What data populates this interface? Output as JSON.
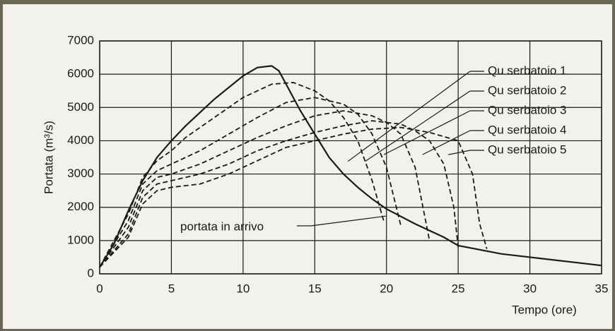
{
  "chart_data": {
    "type": "line",
    "xlabel": "Tempo (ore)",
    "ylabel": "Portata (m³/s)",
    "xlim": [
      0,
      35
    ],
    "xticks": [
      0,
      5,
      10,
      15,
      20,
      25,
      30,
      35
    ],
    "ylim": [
      0,
      7000
    ],
    "yticks": [
      0,
      1000,
      2000,
      3000,
      4000,
      5000,
      6000,
      7000
    ],
    "grid": true,
    "annotation": "portata in arrivo",
    "series": [
      {
        "name": "portata in arrivo",
        "color": "#1a1a1a",
        "style": "solid",
        "x": [
          0,
          1,
          2,
          3,
          4,
          5,
          6,
          7,
          8,
          9,
          10,
          11,
          12,
          12.5,
          13,
          14,
          15,
          16,
          17,
          18,
          19,
          20,
          22,
          24,
          25,
          28,
          30,
          35
        ],
        "values": [
          200,
          900,
          1900,
          2800,
          3500,
          4000,
          4450,
          4850,
          5250,
          5600,
          5950,
          6200,
          6250,
          6100,
          5700,
          4900,
          4200,
          3500,
          3000,
          2600,
          2250,
          1950,
          1500,
          1100,
          850,
          600,
          500,
          250
        ]
      },
      {
        "name": "Qu serbatoio 1",
        "color": "#1a1a1a",
        "style": "dashed",
        "x": [
          0,
          2,
          3,
          4,
          5,
          6,
          8,
          10,
          12,
          13.5,
          15,
          16,
          17,
          18,
          19,
          19.8
        ],
        "values": [
          200,
          1800,
          2900,
          3400,
          3700,
          4100,
          4700,
          5300,
          5700,
          5750,
          5500,
          5200,
          4700,
          4000,
          2800,
          1600
        ]
      },
      {
        "name": "Qu serbatoio 2",
        "color": "#1a1a1a",
        "style": "dashed",
        "x": [
          0,
          2,
          3,
          4,
          5,
          7,
          9,
          11,
          13,
          15,
          17,
          18,
          19,
          20,
          21
        ],
        "values": [
          200,
          1600,
          2700,
          3100,
          3300,
          3700,
          4200,
          4700,
          5150,
          5300,
          5100,
          4800,
          4200,
          3200,
          1450
        ]
      },
      {
        "name": "Qu serbatoio 3",
        "color": "#1a1a1a",
        "style": "dashed",
        "x": [
          0,
          2,
          3,
          4,
          5,
          7,
          9,
          11,
          13,
          15,
          17,
          19,
          20,
          21,
          22,
          23
        ],
        "values": [
          200,
          1400,
          2500,
          2900,
          3000,
          3300,
          3700,
          4100,
          4450,
          4750,
          4900,
          4750,
          4550,
          4200,
          3200,
          1000
        ]
      },
      {
        "name": "Qu serbatoio 4",
        "color": "#1a1a1a",
        "style": "dashed",
        "x": [
          0,
          2,
          3,
          4,
          5,
          7,
          9,
          11,
          13,
          15,
          17,
          19,
          21,
          22,
          23,
          24,
          24.7,
          25
        ],
        "values": [
          200,
          1200,
          2300,
          2700,
          2800,
          3000,
          3300,
          3700,
          4000,
          4250,
          4450,
          4600,
          4500,
          4300,
          4000,
          3300,
          2000,
          800
        ]
      },
      {
        "name": "Qu serbatoio 5",
        "color": "#1a1a1a",
        "style": "dashed",
        "x": [
          0,
          2,
          3,
          4,
          5,
          7,
          9,
          11,
          13,
          15,
          17,
          19,
          21,
          23,
          25,
          26,
          26.5,
          27
        ],
        "values": [
          200,
          1100,
          2100,
          2500,
          2600,
          2700,
          3000,
          3400,
          3800,
          4000,
          4200,
          4350,
          4400,
          4250,
          4000,
          3000,
          1500,
          750
        ]
      }
    ]
  }
}
